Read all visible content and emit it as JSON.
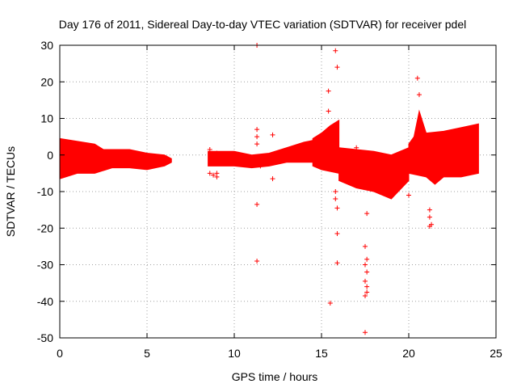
{
  "chart_data": {
    "type": "scatter",
    "title": "Day 176 of 2011, Sidereal Day-to-day VTEC variation (SDTVAR) for receiver pdel",
    "xlabel": "GPS time / hours",
    "ylabel": "SDTVAR / TECUs",
    "xlim": [
      0,
      25
    ],
    "ylim": [
      -50,
      30
    ],
    "xticks": [
      0,
      5,
      10,
      15,
      20,
      25
    ],
    "yticks": [
      -50,
      -40,
      -30,
      -20,
      -10,
      0,
      10,
      20,
      30
    ],
    "grid": true,
    "marker": "+",
    "color": "#ff0000",
    "bands": [
      {
        "name": "segment-1",
        "x_start": 0.0,
        "x_end": 6.4,
        "upper": [
          [
            0,
            4.5
          ],
          [
            2,
            3.0
          ],
          [
            2.5,
            1.5
          ],
          [
            4.0,
            1.5
          ],
          [
            5.0,
            0.5
          ],
          [
            6.0,
            0
          ],
          [
            6.4,
            -1
          ]
        ],
        "lower": [
          [
            0,
            -6.5
          ],
          [
            1,
            -5.0
          ],
          [
            2,
            -5.0
          ],
          [
            3,
            -3.5
          ],
          [
            4,
            -3.5
          ],
          [
            5,
            -4.0
          ],
          [
            6,
            -3.0
          ],
          [
            6.4,
            -2
          ]
        ]
      },
      {
        "name": "segment-2",
        "x_start": 8.5,
        "x_end": 14.5,
        "upper": [
          [
            8.5,
            1.0
          ],
          [
            10,
            1.0
          ],
          [
            11,
            0
          ],
          [
            12,
            0.5
          ],
          [
            13,
            2.0
          ],
          [
            14,
            3.5
          ],
          [
            14.5,
            4.0
          ]
        ],
        "lower": [
          [
            8.5,
            -3.0
          ],
          [
            10,
            -3.0
          ],
          [
            11,
            -3.5
          ],
          [
            12,
            -3.0
          ],
          [
            13,
            -2.0
          ],
          [
            14,
            -2.0
          ],
          [
            14.5,
            -2.0
          ]
        ]
      },
      {
        "name": "segment-3",
        "x_start": 14.5,
        "x_end": 16.0,
        "upper": [
          [
            14.5,
            4.5
          ],
          [
            15,
            6.0
          ],
          [
            15.5,
            8.0
          ],
          [
            16,
            9.5
          ]
        ],
        "lower": [
          [
            14.5,
            -3.0
          ],
          [
            15,
            -4.0
          ],
          [
            15.5,
            -4.5
          ],
          [
            16,
            -5.0
          ]
        ]
      },
      {
        "name": "segment-4",
        "x_start": 16.0,
        "x_end": 20.0,
        "upper": [
          [
            16,
            2.0
          ],
          [
            17,
            1.5
          ],
          [
            18,
            1.0
          ],
          [
            19,
            0
          ],
          [
            20,
            2.0
          ]
        ],
        "lower": [
          [
            16,
            -7.0
          ],
          [
            17,
            -9.0
          ],
          [
            18,
            -10.0
          ],
          [
            19,
            -12.0
          ],
          [
            20,
            -7.0
          ]
        ]
      },
      {
        "name": "segment-5",
        "x_start": 20.0,
        "x_end": 24.0,
        "upper": [
          [
            20,
            3.0
          ],
          [
            20.3,
            5.0
          ],
          [
            20.6,
            12.0
          ],
          [
            21,
            6.0
          ],
          [
            22,
            6.5
          ],
          [
            23,
            7.5
          ],
          [
            24,
            8.5
          ]
        ],
        "lower": [
          [
            20,
            -5.0
          ],
          [
            21,
            -6.0
          ],
          [
            21.5,
            -8.0
          ],
          [
            22,
            -6.0
          ],
          [
            23,
            -6.0
          ],
          [
            24,
            -5.0
          ]
        ]
      }
    ],
    "points": [
      [
        8.6,
        1.5
      ],
      [
        8.6,
        -5.0
      ],
      [
        8.8,
        -5.5
      ],
      [
        9.0,
        -5.0
      ],
      [
        9.0,
        -6.0
      ],
      [
        9.0,
        0.5
      ],
      [
        11.3,
        30.0
      ],
      [
        11.3,
        7.0
      ],
      [
        11.3,
        5.0
      ],
      [
        11.3,
        3.0
      ],
      [
        11.3,
        -13.5
      ],
      [
        11.3,
        -29.0
      ],
      [
        11.5,
        -3.0
      ],
      [
        12.2,
        5.5
      ],
      [
        12.2,
        -6.5
      ],
      [
        15.4,
        17.5
      ],
      [
        15.4,
        12.0
      ],
      [
        15.5,
        -40.5
      ],
      [
        15.8,
        28.5
      ],
      [
        15.9,
        24.0
      ],
      [
        15.8,
        -10.0
      ],
      [
        15.8,
        -12.0
      ],
      [
        15.9,
        -14.5
      ],
      [
        15.9,
        -21.5
      ],
      [
        15.9,
        -29.5
      ],
      [
        17.0,
        2.0
      ],
      [
        17.6,
        -16.0
      ],
      [
        17.5,
        -25.0
      ],
      [
        17.6,
        -28.5
      ],
      [
        17.5,
        -30.0
      ],
      [
        17.6,
        -32.0
      ],
      [
        17.5,
        -34.5
      ],
      [
        17.6,
        -36.0
      ],
      [
        17.6,
        -37.5
      ],
      [
        17.5,
        -38.5
      ],
      [
        17.5,
        -48.5
      ],
      [
        20.0,
        -11.0
      ],
      [
        20.5,
        21.0
      ],
      [
        20.6,
        16.5
      ],
      [
        21.2,
        -15.0
      ],
      [
        21.2,
        -17.0
      ],
      [
        21.3,
        -19.0
      ],
      [
        21.2,
        -19.5
      ]
    ]
  }
}
